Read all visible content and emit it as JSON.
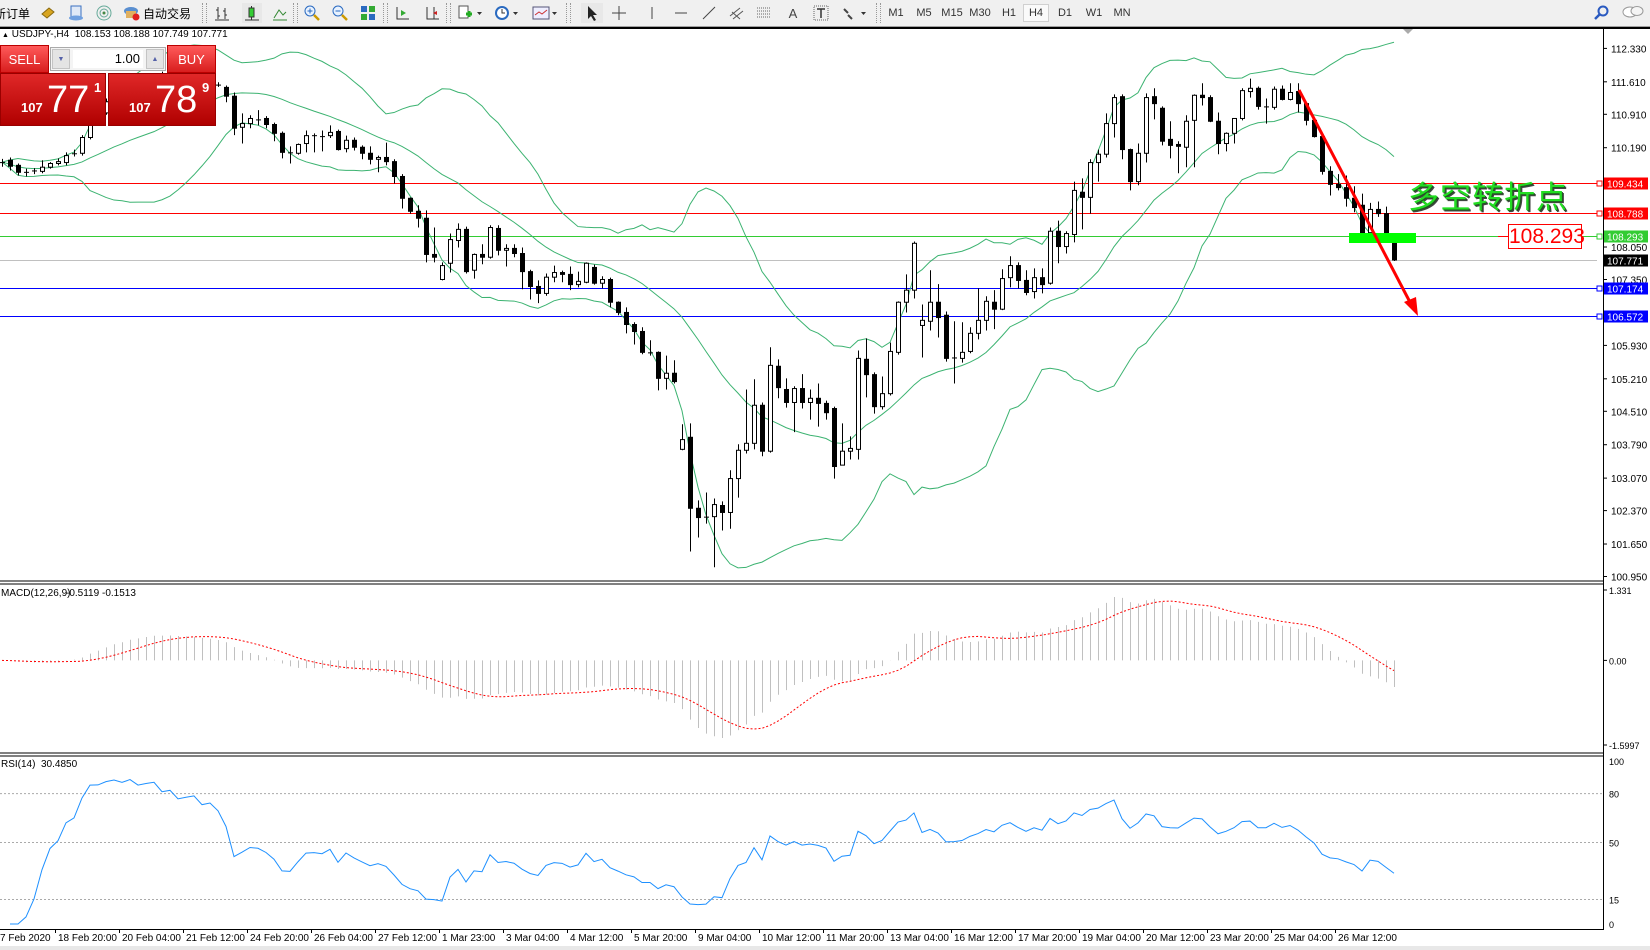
{
  "toolbar": {
    "new_order_label": "新订单",
    "autotrade_label": "自动交易",
    "timeframes": [
      "M1",
      "M5",
      "M15",
      "M30",
      "H1",
      "H4",
      "D1",
      "W1",
      "MN"
    ],
    "active_timeframe": "H4"
  },
  "chart": {
    "symbol": "USDJPY-,H4",
    "ohlc_readout": [
      "108.153",
      "108.188",
      "107.749",
      "107.771"
    ]
  },
  "trade_panel": {
    "sell_label": "SELL",
    "buy_label": "BUY",
    "lot": "1.00",
    "sell_price": {
      "small": "107",
      "big": "77",
      "sup": "1"
    },
    "buy_price": {
      "small": "107",
      "big": "78",
      "sup": "9"
    }
  },
  "annotation": {
    "text": "多空转折点",
    "price_label": "108.293",
    "arrow_color": "#ff0000",
    "zone_color": "#00ff00"
  },
  "chart_data": {
    "type": "candlestick",
    "ylim": [
      100.95,
      112.33
    ],
    "y_tick_labels": [
      "112.330",
      "111.610",
      "110.910",
      "110.190",
      "108.050",
      "107.350",
      "105.930",
      "105.210",
      "104.510",
      "103.790",
      "103.070",
      "102.370",
      "101.650",
      "100.950"
    ],
    "x_tick_labels": [
      "7 Feb 2020",
      "18 Feb 20:00",
      "20 Feb 04:00",
      "21 Feb 12:00",
      "24 Feb 20:00",
      "26 Feb 04:00",
      "27 Feb 12:00",
      "1 Mar 23:00",
      "3 Mar 04:00",
      "4 Mar 12:00",
      "5 Mar 20:00",
      "9 Mar 04:00",
      "10 Mar 12:00",
      "11 Mar 20:00",
      "13 Mar 04:00",
      "16 Mar 12:00",
      "17 Mar 20:00",
      "19 Mar 04:00",
      "20 Mar 12:00",
      "23 Mar 20:00",
      "25 Mar 04:00",
      "26 Mar 12:00"
    ],
    "horizontal_lines": [
      {
        "price": "109.434",
        "color": "#ff0000"
      },
      {
        "price": "108.788",
        "color": "#ff0000"
      },
      {
        "price": "108.293",
        "color": "#33cc33"
      },
      {
        "price": "107.771",
        "color": "#c0c0c0",
        "label_bg": "#000000"
      },
      {
        "price": "107.174",
        "color": "#0000ff"
      },
      {
        "price": "106.572",
        "color": "#0000ff"
      }
    ],
    "ohlc": [
      [
        109.87,
        109.95,
        109.78,
        109.88
      ],
      [
        109.92,
        109.98,
        109.7,
        109.79
      ],
      [
        109.81,
        109.85,
        109.59,
        109.66
      ],
      [
        109.66,
        109.74,
        109.57,
        109.67
      ],
      [
        109.68,
        109.75,
        109.62,
        109.7
      ],
      [
        109.68,
        109.92,
        109.64,
        109.77
      ],
      [
        109.77,
        109.88,
        109.74,
        109.85
      ],
      [
        109.85,
        109.96,
        109.81,
        109.89
      ],
      [
        109.87,
        110.09,
        109.81,
        110.02
      ],
      [
        110.04,
        110.15,
        110.0,
        110.07
      ],
      [
        110.07,
        110.46,
        110.02,
        110.41
      ],
      [
        110.41,
        111.0,
        110.37,
        110.93
      ],
      [
        110.93,
        111.0,
        110.87,
        110.94
      ],
      [
        110.94,
        111.25,
        110.9,
        111.18
      ],
      [
        111.18,
        111.4,
        111.1,
        111.33
      ],
      [
        111.33,
        111.52,
        111.2,
        111.3
      ],
      [
        111.3,
        111.61,
        111.25,
        111.55
      ],
      [
        111.55,
        111.72,
        111.4,
        111.48
      ],
      [
        111.48,
        111.66,
        111.35,
        111.6
      ],
      [
        111.6,
        111.8,
        111.5,
        111.7
      ],
      [
        111.7,
        111.83,
        111.52,
        111.58
      ],
      [
        111.58,
        111.75,
        111.45,
        111.66
      ],
      [
        111.66,
        111.78,
        111.5,
        111.55
      ],
      [
        111.55,
        111.7,
        111.42,
        111.62
      ],
      [
        111.62,
        111.76,
        111.5,
        111.68
      ],
      [
        111.68,
        111.75,
        111.5,
        111.57
      ],
      [
        111.57,
        111.72,
        111.48,
        111.63
      ],
      [
        111.55,
        111.6,
        111.5,
        111.53
      ],
      [
        111.49,
        111.53,
        111.17,
        111.3
      ],
      [
        111.3,
        111.38,
        110.46,
        110.61
      ],
      [
        110.63,
        110.93,
        110.28,
        110.71
      ],
      [
        110.71,
        110.89,
        110.61,
        110.82
      ],
      [
        110.8,
        111.0,
        110.67,
        110.8
      ],
      [
        110.82,
        110.87,
        110.61,
        110.69
      ],
      [
        110.69,
        110.73,
        110.33,
        110.5
      ],
      [
        110.5,
        110.54,
        109.96,
        110.09
      ],
      [
        110.09,
        110.22,
        109.85,
        110.07
      ],
      [
        110.07,
        110.28,
        110.04,
        110.26
      ],
      [
        110.28,
        110.56,
        110.09,
        110.45
      ],
      [
        110.45,
        110.5,
        110.09,
        110.46
      ],
      [
        110.44,
        110.56,
        110.11,
        110.43
      ],
      [
        110.45,
        110.67,
        110.4,
        110.52
      ],
      [
        110.54,
        110.58,
        110.13,
        110.15
      ],
      [
        110.17,
        110.45,
        110.09,
        110.35
      ],
      [
        110.35,
        110.41,
        110.13,
        110.2
      ],
      [
        110.2,
        110.24,
        109.94,
        110.07
      ],
      [
        110.07,
        110.22,
        109.83,
        109.94
      ],
      [
        109.94,
        110.02,
        109.66,
        109.98
      ],
      [
        109.98,
        110.3,
        109.81,
        109.89
      ],
      [
        109.89,
        109.94,
        109.42,
        109.57
      ],
      [
        109.57,
        109.62,
        108.88,
        109.1
      ],
      [
        109.1,
        109.12,
        108.77,
        108.82
      ],
      [
        108.82,
        108.95,
        108.47,
        108.67
      ],
      [
        108.67,
        108.84,
        107.72,
        107.89
      ],
      [
        107.89,
        108.47,
        107.72,
        107.83
      ],
      [
        107.35,
        107.72,
        107.33,
        107.65
      ],
      [
        107.7,
        108.34,
        107.5,
        108.21
      ],
      [
        108.19,
        108.56,
        108.04,
        108.43
      ],
      [
        108.43,
        108.49,
        107.48,
        107.52
      ],
      [
        107.55,
        107.91,
        107.37,
        107.89
      ],
      [
        107.89,
        108.11,
        107.68,
        107.83
      ],
      [
        107.83,
        108.52,
        107.8,
        108.47
      ],
      [
        108.45,
        108.52,
        107.87,
        107.98
      ],
      [
        107.98,
        108.11,
        107.63,
        108.02
      ],
      [
        108.02,
        108.11,
        107.83,
        107.91
      ],
      [
        107.91,
        108.04,
        107.14,
        107.52
      ],
      [
        107.52,
        107.56,
        106.92,
        107.2
      ],
      [
        107.2,
        107.33,
        106.84,
        107.05
      ],
      [
        107.05,
        107.48,
        107.0,
        107.4
      ],
      [
        107.4,
        107.65,
        107.29,
        107.5
      ],
      [
        107.5,
        107.54,
        107.29,
        107.46
      ],
      [
        107.46,
        107.63,
        107.12,
        107.24
      ],
      [
        107.24,
        107.52,
        107.18,
        107.31
      ],
      [
        107.29,
        107.72,
        107.27,
        107.7
      ],
      [
        107.61,
        107.67,
        107.24,
        107.27
      ],
      [
        107.27,
        107.42,
        107.16,
        107.35
      ],
      [
        107.35,
        107.39,
        106.75,
        106.86
      ],
      [
        106.86,
        106.88,
        106.58,
        106.64
      ],
      [
        106.64,
        106.75,
        106.19,
        106.38
      ],
      [
        106.38,
        106.43,
        105.95,
        106.23
      ],
      [
        106.23,
        106.32,
        105.74,
        105.78
      ],
      [
        105.78,
        106.04,
        105.71,
        105.78
      ],
      [
        105.78,
        105.8,
        104.96,
        105.22
      ],
      [
        105.22,
        105.71,
        104.98,
        105.33
      ],
      [
        105.33,
        105.61,
        105.11,
        105.15
      ],
      [
        103.69,
        104.23,
        103.67,
        103.9
      ],
      [
        103.95,
        104.25,
        101.49,
        102.42
      ],
      [
        102.42,
        102.59,
        101.79,
        102.22
      ],
      [
        102.24,
        102.76,
        102.09,
        102.24
      ],
      [
        102.24,
        102.63,
        101.15,
        102.5
      ],
      [
        102.48,
        102.57,
        101.94,
        102.33
      ],
      [
        102.33,
        103.24,
        101.98,
        103.06
      ],
      [
        103.06,
        103.8,
        102.65,
        103.67
      ],
      [
        103.67,
        104.98,
        103.6,
        103.82
      ],
      [
        103.82,
        105.2,
        103.69,
        104.64
      ],
      [
        104.64,
        104.7,
        103.54,
        103.65
      ],
      [
        103.65,
        105.89,
        103.62,
        105.5
      ],
      [
        105.48,
        105.63,
        104.79,
        105.02
      ],
      [
        104.98,
        105.22,
        104.59,
        104.7
      ],
      [
        104.7,
        105.05,
        104.06,
        105.0
      ],
      [
        105.0,
        105.31,
        104.57,
        104.7
      ],
      [
        104.7,
        104.98,
        104.33,
        104.79
      ],
      [
        104.79,
        105.11,
        104.18,
        104.68
      ],
      [
        104.68,
        104.74,
        104.33,
        104.48
      ],
      [
        104.57,
        104.61,
        103.06,
        103.32
      ],
      [
        103.35,
        104.25,
        103.35,
        103.65
      ],
      [
        103.65,
        103.97,
        103.47,
        103.71
      ],
      [
        103.69,
        105.82,
        103.47,
        105.65
      ],
      [
        105.63,
        106.08,
        104.81,
        105.3
      ],
      [
        105.3,
        105.35,
        104.46,
        104.61
      ],
      [
        104.61,
        105.26,
        104.55,
        104.89
      ],
      [
        104.89,
        105.99,
        104.85,
        105.8
      ],
      [
        105.78,
        106.88,
        105.73,
        106.86
      ],
      [
        106.86,
        107.46,
        106.64,
        107.12
      ],
      [
        107.12,
        108.17,
        106.94,
        108.13
      ],
      [
        106.36,
        106.81,
        105.67,
        106.47
      ],
      [
        106.45,
        107.55,
        106.25,
        106.86
      ],
      [
        106.86,
        107.25,
        106.1,
        106.53
      ],
      [
        106.58,
        106.66,
        105.58,
        105.65
      ],
      [
        105.67,
        106.45,
        105.11,
        105.67
      ],
      [
        105.65,
        106.43,
        105.56,
        105.78
      ],
      [
        105.8,
        106.32,
        105.76,
        106.19
      ],
      [
        106.19,
        107.16,
        106.06,
        106.47
      ],
      [
        106.47,
        106.99,
        106.25,
        106.88
      ],
      [
        106.86,
        107.12,
        106.28,
        106.71
      ],
      [
        106.71,
        107.57,
        106.69,
        107.37
      ],
      [
        107.39,
        107.85,
        107.18,
        107.65
      ],
      [
        107.65,
        107.72,
        107.16,
        107.33
      ],
      [
        107.33,
        107.55,
        107.01,
        107.07
      ],
      [
        107.09,
        107.59,
        106.94,
        107.39
      ],
      [
        107.39,
        107.59,
        107.05,
        107.24
      ],
      [
        107.27,
        108.47,
        107.24,
        108.39
      ],
      [
        108.39,
        108.62,
        107.7,
        108.06
      ],
      [
        108.06,
        108.39,
        107.91,
        108.34
      ],
      [
        108.32,
        109.46,
        108.15,
        109.27
      ],
      [
        109.23,
        109.53,
        108.43,
        109.12
      ],
      [
        109.12,
        109.94,
        108.77,
        109.87
      ],
      [
        109.87,
        110.15,
        109.46,
        110.05
      ],
      [
        110.05,
        110.93,
        109.98,
        110.71
      ],
      [
        110.71,
        111.34,
        110.41,
        111.27
      ],
      [
        111.29,
        111.34,
        109.94,
        110.15
      ],
      [
        110.15,
        110.17,
        109.27,
        109.46
      ],
      [
        109.46,
        110.28,
        109.38,
        110.07
      ],
      [
        110.07,
        111.36,
        109.87,
        111.27
      ],
      [
        111.29,
        111.47,
        110.8,
        111.14
      ],
      [
        111.04,
        111.08,
        110.24,
        110.33
      ],
      [
        110.37,
        110.76,
        109.96,
        110.24
      ],
      [
        110.26,
        110.33,
        109.64,
        110.22
      ],
      [
        110.2,
        110.89,
        109.77,
        110.76
      ],
      [
        110.78,
        111.34,
        109.77,
        111.32
      ],
      [
        111.32,
        111.58,
        111.1,
        111.27
      ],
      [
        111.27,
        111.32,
        110.74,
        110.76
      ],
      [
        110.76,
        110.95,
        110.05,
        110.28
      ],
      [
        110.28,
        110.52,
        110.11,
        110.5
      ],
      [
        110.5,
        110.82,
        110.28,
        110.82
      ],
      [
        110.82,
        111.47,
        110.78,
        111.42
      ],
      [
        111.4,
        111.68,
        111.27,
        111.47
      ],
      [
        111.47,
        111.51,
        111.01,
        111.08
      ],
      [
        111.08,
        111.25,
        110.71,
        111.08
      ],
      [
        111.06,
        111.51,
        111.01,
        111.45
      ],
      [
        111.45,
        111.53,
        111.21,
        111.23
      ],
      [
        111.23,
        111.58,
        111.21,
        111.38
      ],
      [
        111.4,
        111.58,
        110.95,
        111.14
      ],
      [
        111.14,
        111.17,
        110.67,
        110.78
      ],
      [
        110.78,
        110.82,
        110.41,
        110.43
      ],
      [
        110.43,
        110.45,
        109.61,
        109.68
      ],
      [
        109.68,
        109.79,
        109.16,
        109.4
      ],
      [
        109.4,
        109.62,
        109.27,
        109.33
      ],
      [
        109.33,
        109.59,
        108.92,
        109.1
      ],
      [
        109.1,
        109.36,
        108.8,
        108.9
      ],
      [
        108.95,
        109.2,
        108.28,
        108.36
      ],
      [
        108.36,
        109.0,
        108.3,
        108.86
      ],
      [
        108.86,
        109.03,
        108.7,
        108.77
      ],
      [
        108.77,
        108.92,
        108.28,
        108.3
      ],
      [
        108.153,
        108.188,
        107.749,
        107.771
      ]
    ],
    "macd": {
      "label": "MACD(12,26,9)",
      "values": [
        "-0.5119",
        "-0.1513"
      ],
      "ylim": [
        -1.5997,
        1.331
      ],
      "tick_labels": [
        "1.331",
        "0.00",
        "-1.5997"
      ],
      "histogram_color": "#c0c0c0",
      "signal_color": "#ff0000"
    },
    "rsi": {
      "label": "RSI(14)",
      "value": "30.4850",
      "levels": [
        80,
        50,
        15
      ],
      "tick_labels": [
        "100",
        "80",
        "50",
        "15",
        "0"
      ],
      "line_color": "#1e90ff"
    },
    "bollinger_color": "#3cb371"
  }
}
